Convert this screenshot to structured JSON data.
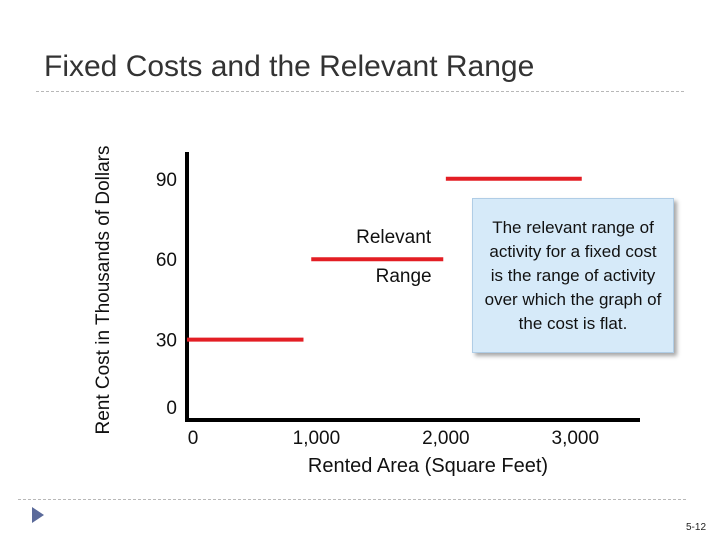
{
  "slide": {
    "title": "Fixed Costs and the Relevant Range",
    "page_number": "5-12"
  },
  "callout": {
    "text": "The relevant range of activity for a fixed cost is the range of activity over which the graph of the cost is flat."
  },
  "colors": {
    "line": "#e31e24",
    "axis": "#000000",
    "callout_bg": "#d6eaf9"
  },
  "chart_data": {
    "type": "line",
    "title": "",
    "xlabel": "Rented Area (Square Feet)",
    "ylabel": "Rent Cost in Thousands of Dollars",
    "x_ticks": [
      {
        "value": 0,
        "label": "0"
      },
      {
        "value": 1000,
        "label": "1,000"
      },
      {
        "value": 2000,
        "label": "2,000"
      },
      {
        "value": 3000,
        "label": "3,000"
      }
    ],
    "y_ticks": [
      {
        "value": 0,
        "label": "0"
      },
      {
        "value": 30,
        "label": "30"
      },
      {
        "value": 60,
        "label": "60"
      },
      {
        "value": 90,
        "label": "90"
      }
    ],
    "xlim": [
      0,
      3500
    ],
    "ylim": [
      0,
      100
    ],
    "segments": [
      {
        "x": [
          0,
          900
        ],
        "y": [
          30,
          30
        ]
      },
      {
        "x": [
          960,
          1980
        ],
        "y": [
          60,
          60
        ]
      },
      {
        "x": [
          2000,
          3050
        ],
        "y": [
          90,
          90
        ]
      }
    ],
    "annotation": {
      "line1": "Relevant",
      "line2": "Range",
      "x": 1550,
      "y": 60
    },
    "grid": false,
    "legend": "none"
  }
}
